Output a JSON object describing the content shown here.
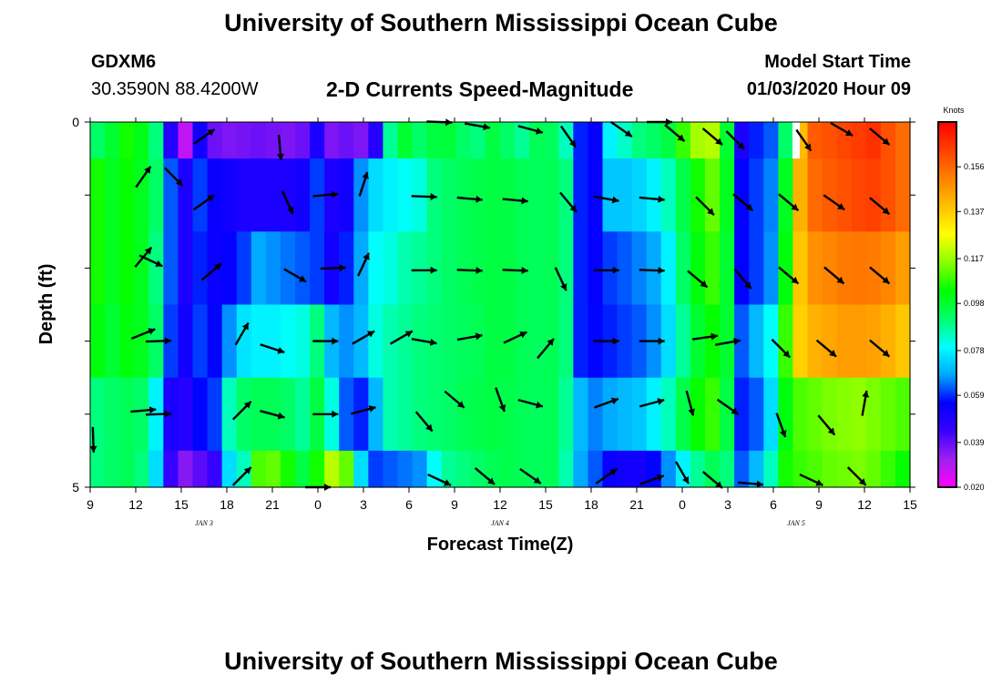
{
  "page": {
    "title_top": "University of Southern Mississippi Ocean Cube",
    "title_bottom": "University of Southern Mississippi Ocean Cube",
    "station": "GDXM6",
    "location": "30.3590N 88.4200W",
    "subtitle": "2-D Currents Speed-Magnitude",
    "start_label": "Model Start Time",
    "start_value": "01/03/2020 Hour 09"
  },
  "colors": {
    "scale": [
      "#ff00ff",
      "#a020f0",
      "#3a00ff",
      "#0000ff",
      "#00a8ff",
      "#00ffff",
      "#00ff6a",
      "#00ff00",
      "#8aff00",
      "#ffff00",
      "#ffc000",
      "#ff8000",
      "#ff4000",
      "#ff0000"
    ],
    "arrow": "#000000",
    "missing": "#ffffff"
  },
  "chart_data": {
    "type": "heatmap",
    "title": "2-D Currents Speed-Magnitude",
    "xlabel": "Forecast Time(Z)",
    "ylabel": "Depth (ft)",
    "x_ticks": [
      "9",
      "12",
      "15",
      "18",
      "21",
      "0",
      "3",
      "6",
      "9",
      "12",
      "15",
      "18",
      "21",
      "0",
      "3",
      "6",
      "9",
      "12",
      "15"
    ],
    "x_range_hours": [
      0,
      54
    ],
    "day_labels": [
      {
        "label": "JAN 3",
        "hour": 7.5
      },
      {
        "label": "JAN 4",
        "hour": 27
      },
      {
        "label": "JAN 5",
        "hour": 46.5
      }
    ],
    "y_ticks": [
      "0",
      "5"
    ],
    "y_range_ft": [
      0,
      5
    ],
    "depth_levels_ft": [
      0,
      1,
      2,
      3,
      4,
      5
    ],
    "colorbar": {
      "title": "Knots",
      "ticks": [
        "0.020",
        "0.039",
        "0.059",
        "0.078",
        "0.098",
        "0.117",
        "0.137",
        "0.156"
      ],
      "range": [
        0.02,
        0.175
      ]
    },
    "speed_grid_knots": [
      [
        0.092,
        0.098,
        0.105,
        0.101,
        0.09,
        0.048,
        0.028,
        0.052,
        0.038,
        0.036,
        0.037,
        0.038,
        0.037,
        0.036,
        0.038,
        0.05,
        0.036,
        0.038,
        0.036,
        0.048,
        0.088,
        0.098,
        0.092,
        0.096,
        0.097,
        0.092,
        0.09,
        0.096,
        0.092,
        0.088,
        0.094,
        0.093,
        0.085,
        0.058,
        0.055,
        0.078,
        0.084,
        0.09,
        0.092,
        0.096,
        0.108,
        0.118,
        0.12,
        0.098,
        0.05,
        0.058,
        0.062,
        0.092,
        0.14,
        0.158,
        0.16,
        0.162,
        0.164,
        0.166,
        0.16,
        0.155
      ],
      [
        0.105,
        0.1,
        0.104,
        0.1,
        0.092,
        0.062,
        0.05,
        0.06,
        0.054,
        0.052,
        0.05,
        0.05,
        0.05,
        0.05,
        0.052,
        0.06,
        0.05,
        0.052,
        0.066,
        0.075,
        0.078,
        0.08,
        0.082,
        0.09,
        0.092,
        0.094,
        0.095,
        0.096,
        0.096,
        0.094,
        0.093,
        0.094,
        0.09,
        0.058,
        0.055,
        0.072,
        0.072,
        0.074,
        0.078,
        0.085,
        0.095,
        0.105,
        0.112,
        0.1,
        0.055,
        0.06,
        0.065,
        0.1,
        0.142,
        0.155,
        0.158,
        0.16,
        0.162,
        0.163,
        0.16,
        0.155
      ],
      [
        0.105,
        0.1,
        0.104,
        0.1,
        0.09,
        0.062,
        0.05,
        0.058,
        0.054,
        0.055,
        0.06,
        0.068,
        0.066,
        0.064,
        0.062,
        0.06,
        0.052,
        0.058,
        0.068,
        0.08,
        0.082,
        0.086,
        0.088,
        0.09,
        0.092,
        0.094,
        0.095,
        0.096,
        0.096,
        0.094,
        0.093,
        0.094,
        0.09,
        0.058,
        0.055,
        0.06,
        0.062,
        0.065,
        0.068,
        0.078,
        0.092,
        0.102,
        0.108,
        0.098,
        0.055,
        0.06,
        0.066,
        0.102,
        0.138,
        0.148,
        0.15,
        0.152,
        0.153,
        0.152,
        0.15,
        0.146
      ],
      [
        0.102,
        0.098,
        0.102,
        0.1,
        0.092,
        0.06,
        0.052,
        0.06,
        0.056,
        0.066,
        0.076,
        0.078,
        0.078,
        0.08,
        0.082,
        0.09,
        0.07,
        0.066,
        0.07,
        0.082,
        0.086,
        0.088,
        0.09,
        0.091,
        0.092,
        0.093,
        0.094,
        0.096,
        0.096,
        0.094,
        0.093,
        0.094,
        0.09,
        0.058,
        0.056,
        0.058,
        0.06,
        0.062,
        0.066,
        0.075,
        0.088,
        0.098,
        0.104,
        0.098,
        0.062,
        0.07,
        0.08,
        0.108,
        0.136,
        0.142,
        0.144,
        0.146,
        0.146,
        0.145,
        0.142,
        0.138
      ],
      [
        0.09,
        0.092,
        0.094,
        0.092,
        0.078,
        0.05,
        0.048,
        0.056,
        0.06,
        0.085,
        0.092,
        0.094,
        0.094,
        0.092,
        0.088,
        0.096,
        0.082,
        0.062,
        0.058,
        0.07,
        0.086,
        0.088,
        0.09,
        0.091,
        0.092,
        0.094,
        0.095,
        0.096,
        0.095,
        0.094,
        0.093,
        0.094,
        0.088,
        0.07,
        0.065,
        0.068,
        0.07,
        0.072,
        0.078,
        0.085,
        0.095,
        0.104,
        0.108,
        0.096,
        0.058,
        0.062,
        0.075,
        0.102,
        0.11,
        0.112,
        0.114,
        0.115,
        0.116,
        0.114,
        0.112,
        0.11
      ],
      [
        0.09,
        0.092,
        0.094,
        0.09,
        0.075,
        0.045,
        0.035,
        0.04,
        0.045,
        0.075,
        0.085,
        0.11,
        0.112,
        0.105,
        0.096,
        0.105,
        0.12,
        0.112,
        0.075,
        0.06,
        0.062,
        0.064,
        0.066,
        0.08,
        0.088,
        0.09,
        0.092,
        0.094,
        0.095,
        0.094,
        0.093,
        0.094,
        0.086,
        0.068,
        0.062,
        0.054,
        0.052,
        0.052,
        0.056,
        0.066,
        0.078,
        0.088,
        0.094,
        0.09,
        0.062,
        0.07,
        0.085,
        0.105,
        0.108,
        0.11,
        0.112,
        0.113,
        0.114,
        0.112,
        0.108,
        0.104
      ]
    ],
    "missing_cells": [
      {
        "depth_index": 0,
        "hour": 46.5
      }
    ],
    "vectors": [
      {
        "hour": 0.2,
        "depth": 4.35,
        "dir": 178
      },
      {
        "hour": 3.5,
        "depth": 0.75,
        "dir": 35
      },
      {
        "hour": 5.5,
        "depth": 0.75,
        "dir": 135
      },
      {
        "hour": 7.5,
        "depth": 0.2,
        "dir": 55
      },
      {
        "hour": 7.5,
        "depth": 1.1,
        "dir": 55
      },
      {
        "hour": 12.5,
        "depth": 0.35,
        "dir": 175
      },
      {
        "hour": 13.0,
        "depth": 1.1,
        "dir": 155
      },
      {
        "hour": 15.5,
        "depth": 1.0,
        "dir": 85
      },
      {
        "hour": 18.0,
        "depth": 0.85,
        "dir": 18
      },
      {
        "hour": 3.5,
        "depth": 1.85,
        "dir": 40
      },
      {
        "hour": 4.0,
        "depth": 1.9,
        "dir": 115
      },
      {
        "hour": 8.0,
        "depth": 2.05,
        "dir": 50
      },
      {
        "hour": 13.5,
        "depth": 2.1,
        "dir": 120
      },
      {
        "hour": 16.0,
        "depth": 2.0,
        "dir": 88
      },
      {
        "hour": 18.0,
        "depth": 1.95,
        "dir": 25
      },
      {
        "hour": 3.5,
        "depth": 2.9,
        "dir": 68
      },
      {
        "hour": 4.5,
        "depth": 3.0,
        "dir": 88
      },
      {
        "hour": 10.0,
        "depth": 2.9,
        "dir": 30
      },
      {
        "hour": 12.0,
        "depth": 3.1,
        "dir": 108
      },
      {
        "hour": 15.5,
        "depth": 3.0,
        "dir": 90
      },
      {
        "hour": 18.0,
        "depth": 2.95,
        "dir": 60
      },
      {
        "hour": 20.5,
        "depth": 2.95,
        "dir": 60
      },
      {
        "hour": 3.5,
        "depth": 3.95,
        "dir": 85
      },
      {
        "hour": 4.5,
        "depth": 4.0,
        "dir": 88
      },
      {
        "hour": 10.0,
        "depth": 3.95,
        "dir": 45
      },
      {
        "hour": 12.0,
        "depth": 4.0,
        "dir": 105
      },
      {
        "hour": 15.5,
        "depth": 4.0,
        "dir": 90
      },
      {
        "hour": 18.0,
        "depth": 3.95,
        "dir": 75
      },
      {
        "hour": 22.0,
        "depth": 4.1,
        "dir": 140
      },
      {
        "hour": 10.0,
        "depth": 4.85,
        "dir": 45
      },
      {
        "hour": 15.0,
        "depth": 5.0,
        "dir": 90
      },
      {
        "hour": 23.0,
        "depth": 0.0,
        "dir": 92
      },
      {
        "hour": 25.5,
        "depth": 0.05,
        "dir": 100
      },
      {
        "hour": 29.0,
        "depth": 0.1,
        "dir": 105
      },
      {
        "hour": 31.5,
        "depth": 0.2,
        "dir": 145
      },
      {
        "hour": 35.0,
        "depth": 0.1,
        "dir": 125
      },
      {
        "hour": 37.5,
        "depth": 0.0,
        "dir": 90
      },
      {
        "hour": 38.5,
        "depth": 0.15,
        "dir": 130
      },
      {
        "hour": 41.0,
        "depth": 0.2,
        "dir": 130
      },
      {
        "hour": 22.0,
        "depth": 1.02,
        "dir": 92
      },
      {
        "hour": 25.0,
        "depth": 1.05,
        "dir": 95
      },
      {
        "hour": 28.0,
        "depth": 1.07,
        "dir": 95
      },
      {
        "hour": 31.5,
        "depth": 1.1,
        "dir": 140
      },
      {
        "hour": 34.0,
        "depth": 1.05,
        "dir": 100
      },
      {
        "hour": 37.0,
        "depth": 1.05,
        "dir": 95
      },
      {
        "hour": 40.5,
        "depth": 1.15,
        "dir": 135
      },
      {
        "hour": 22.0,
        "depth": 2.03,
        "dir": 90
      },
      {
        "hour": 25.0,
        "depth": 2.03,
        "dir": 92
      },
      {
        "hour": 28.0,
        "depth": 2.03,
        "dir": 92
      },
      {
        "hour": 31.0,
        "depth": 2.15,
        "dir": 155
      },
      {
        "hour": 34.0,
        "depth": 2.03,
        "dir": 90
      },
      {
        "hour": 37.0,
        "depth": 2.03,
        "dir": 92
      },
      {
        "hour": 40.0,
        "depth": 2.15,
        "dir": 130
      },
      {
        "hour": 22.0,
        "depth": 3.0,
        "dir": 100
      },
      {
        "hour": 25.0,
        "depth": 2.95,
        "dir": 80
      },
      {
        "hour": 28.0,
        "depth": 2.95,
        "dir": 65
      },
      {
        "hour": 30.0,
        "depth": 3.1,
        "dir": 40
      },
      {
        "hour": 34.0,
        "depth": 3.0,
        "dir": 90
      },
      {
        "hour": 37.0,
        "depth": 3.0,
        "dir": 90
      },
      {
        "hour": 40.5,
        "depth": 2.95,
        "dir": 82
      },
      {
        "hour": 24.0,
        "depth": 3.8,
        "dir": 130
      },
      {
        "hour": 27.0,
        "depth": 3.8,
        "dir": 160
      },
      {
        "hour": 29.0,
        "depth": 3.85,
        "dir": 105
      },
      {
        "hour": 34.0,
        "depth": 3.85,
        "dir": 70
      },
      {
        "hour": 37.0,
        "depth": 3.85,
        "dir": 75
      },
      {
        "hour": 39.5,
        "depth": 3.85,
        "dir": 165
      },
      {
        "hour": 23.0,
        "depth": 4.9,
        "dir": 115
      },
      {
        "hour": 26.0,
        "depth": 4.85,
        "dir": 130
      },
      {
        "hour": 29.0,
        "depth": 4.85,
        "dir": 125
      },
      {
        "hour": 34.0,
        "depth": 4.85,
        "dir": 55
      },
      {
        "hour": 37.0,
        "depth": 4.9,
        "dir": 70
      },
      {
        "hour": 39.0,
        "depth": 4.8,
        "dir": 150
      },
      {
        "hour": 42.5,
        "depth": 0.25,
        "dir": 135
      },
      {
        "hour": 47.0,
        "depth": 0.25,
        "dir": 145
      },
      {
        "hour": 49.5,
        "depth": 0.1,
        "dir": 120
      },
      {
        "hour": 52.0,
        "depth": 0.2,
        "dir": 130
      },
      {
        "hour": 43.0,
        "depth": 1.1,
        "dir": 130
      },
      {
        "hour": 46.0,
        "depth": 1.1,
        "dir": 130
      },
      {
        "hour": 49.0,
        "depth": 1.1,
        "dir": 125
      },
      {
        "hour": 52.0,
        "depth": 1.15,
        "dir": 130
      },
      {
        "hour": 43.0,
        "depth": 2.15,
        "dir": 140
      },
      {
        "hour": 46.0,
        "depth": 2.1,
        "dir": 130
      },
      {
        "hour": 49.0,
        "depth": 2.1,
        "dir": 130
      },
      {
        "hour": 52.0,
        "depth": 2.1,
        "dir": 130
      },
      {
        "hour": 42.0,
        "depth": 3.02,
        "dir": 80
      },
      {
        "hour": 45.5,
        "depth": 3.1,
        "dir": 135
      },
      {
        "hour": 48.5,
        "depth": 3.1,
        "dir": 130
      },
      {
        "hour": 52.0,
        "depth": 3.1,
        "dir": 130
      },
      {
        "hour": 42.0,
        "depth": 3.9,
        "dir": 125
      },
      {
        "hour": 45.5,
        "depth": 4.15,
        "dir": 160
      },
      {
        "hour": 48.5,
        "depth": 4.15,
        "dir": 140
      },
      {
        "hour": 51.0,
        "depth": 3.85,
        "dir": 10
      },
      {
        "hour": 41.0,
        "depth": 4.9,
        "dir": 130
      },
      {
        "hour": 43.5,
        "depth": 4.95,
        "dir": 95
      },
      {
        "hour": 47.5,
        "depth": 4.9,
        "dir": 115
      },
      {
        "hour": 50.5,
        "depth": 4.85,
        "dir": 135
      }
    ]
  }
}
